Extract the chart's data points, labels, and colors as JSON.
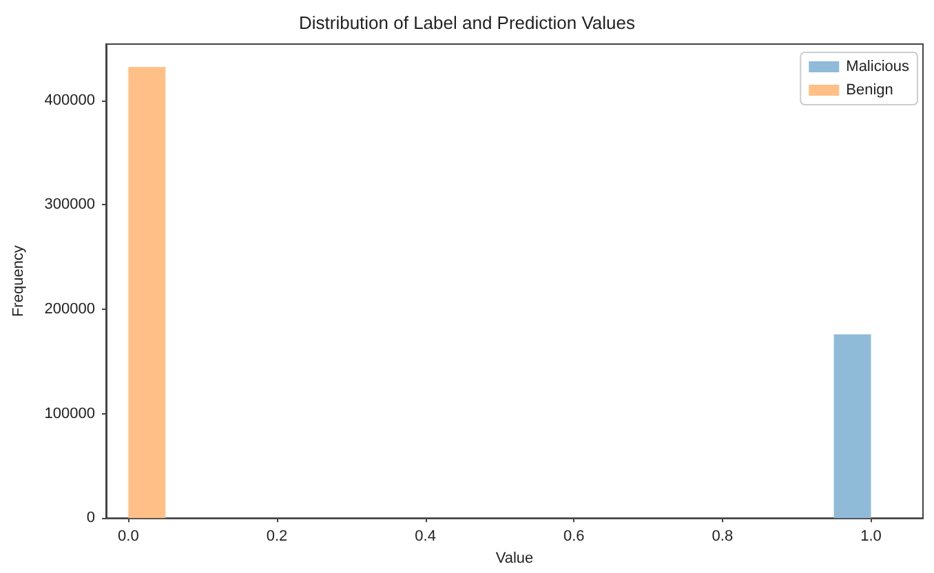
{
  "chart_data": {
    "type": "histogram",
    "title": "Distribution of Label and Prediction Values",
    "xlabel": "Value",
    "ylabel": "Frequency",
    "bins": [
      0,
      0.05,
      0.1,
      0.15,
      0.2,
      0.25,
      0.3,
      0.35,
      0.4,
      0.45,
      0.5,
      0.55,
      0.6,
      0.65,
      0.7,
      0.75,
      0.8,
      0.85,
      0.9,
      0.95,
      1.0
    ],
    "series": [
      {
        "name": "Malicious",
        "color": "#8fbbd9",
        "values": [
          0,
          0,
          0,
          0,
          0,
          0,
          0,
          0,
          0,
          0,
          0,
          0,
          0,
          0,
          0,
          0,
          0,
          0,
          0,
          176000
        ]
      },
      {
        "name": "Benign",
        "color": "#ffbf86",
        "values": [
          432000,
          0,
          0,
          0,
          0,
          0,
          0,
          0,
          0,
          0,
          0,
          0,
          0,
          0,
          0,
          0,
          0,
          0,
          0,
          0
        ]
      }
    ],
    "xlim": [
      -0.03,
      1.07
    ],
    "xticks": [
      {
        "value": 0,
        "label": "0.0"
      },
      {
        "value": 0.2,
        "label": "0.2"
      },
      {
        "value": 0.4,
        "label": "0.4"
      },
      {
        "value": 0.6,
        "label": "0.6"
      },
      {
        "value": 0.8,
        "label": "0.8"
      },
      {
        "value": 1,
        "label": "1.0"
      }
    ],
    "ylim": [
      0,
      454000
    ],
    "yticks": [
      0,
      100000,
      200000,
      300000,
      400000
    ],
    "grid": false,
    "legend": "top right"
  }
}
